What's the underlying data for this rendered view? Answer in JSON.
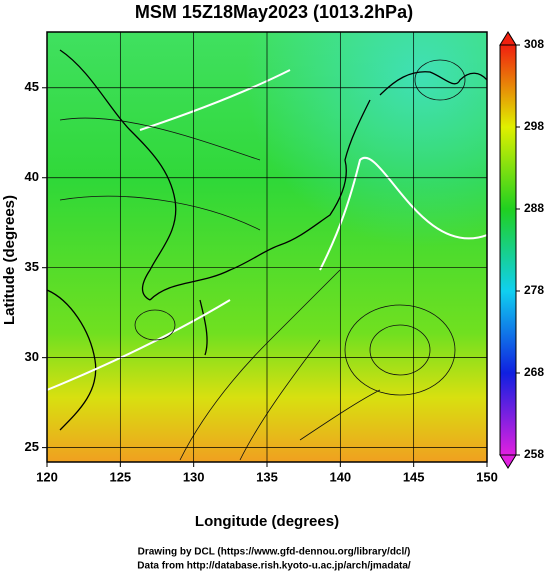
{
  "map": {
    "title": "MSM 15Z18May2023 (1013.2hPa)",
    "xlabel": "Longitude (degrees)",
    "ylabel": "Latitude  (degrees)",
    "xlim": [
      120,
      150
    ],
    "ylim": [
      24.2,
      48.1
    ],
    "xticks": [
      120,
      125,
      130,
      135,
      140,
      145,
      150
    ],
    "yticks": [
      25,
      30,
      35,
      40,
      45
    ],
    "grid": true,
    "colorbar": {
      "lim": [
        258,
        308
      ],
      "ticks": [
        258,
        268,
        278,
        288,
        298,
        308
      ],
      "colors": [
        "#e020e0",
        "#1020e0",
        "#10d0f0",
        "#20d020",
        "#e0f000",
        "#f02010"
      ]
    },
    "credits": [
      "Drawing by DCL (https://www.gfd-dennou.org/library/dcl/)",
      "Data from http://database.rish.kyoto-u.ac.jp/arch/jmadata/"
    ]
  }
}
